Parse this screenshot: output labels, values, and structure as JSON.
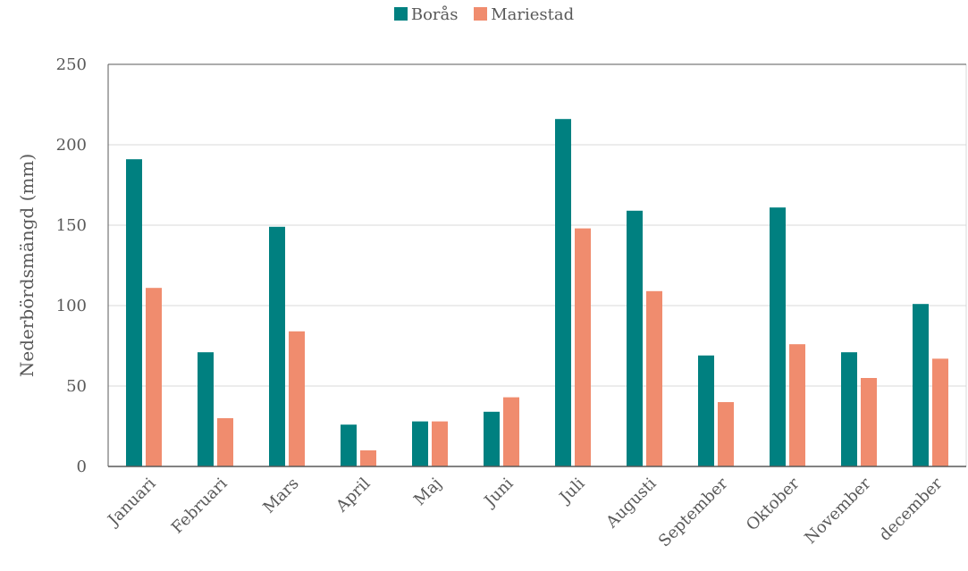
{
  "chart_data": {
    "type": "bar",
    "title": "",
    "xlabel": "",
    "ylabel": "Nederbördsmängd (mm)",
    "ylim": [
      0,
      250
    ],
    "yticks": [
      0,
      50,
      100,
      150,
      200,
      250
    ],
    "grid": true,
    "legend_position": "top-center",
    "categories": [
      "Januari",
      "Februari",
      "Mars",
      "April",
      "Maj",
      "Juni",
      "Juli",
      "Augusti",
      "September",
      "Oktober",
      "November",
      "december"
    ],
    "series": [
      {
        "name": "Borås",
        "color": "#008080",
        "values": [
          191,
          71,
          149,
          26,
          28,
          34,
          216,
          159,
          69,
          161,
          71,
          101
        ]
      },
      {
        "name": "Mariestad",
        "color": "#F08C6E",
        "values": [
          111,
          30,
          84,
          10,
          28,
          43,
          148,
          109,
          40,
          76,
          55,
          67
        ]
      }
    ]
  }
}
